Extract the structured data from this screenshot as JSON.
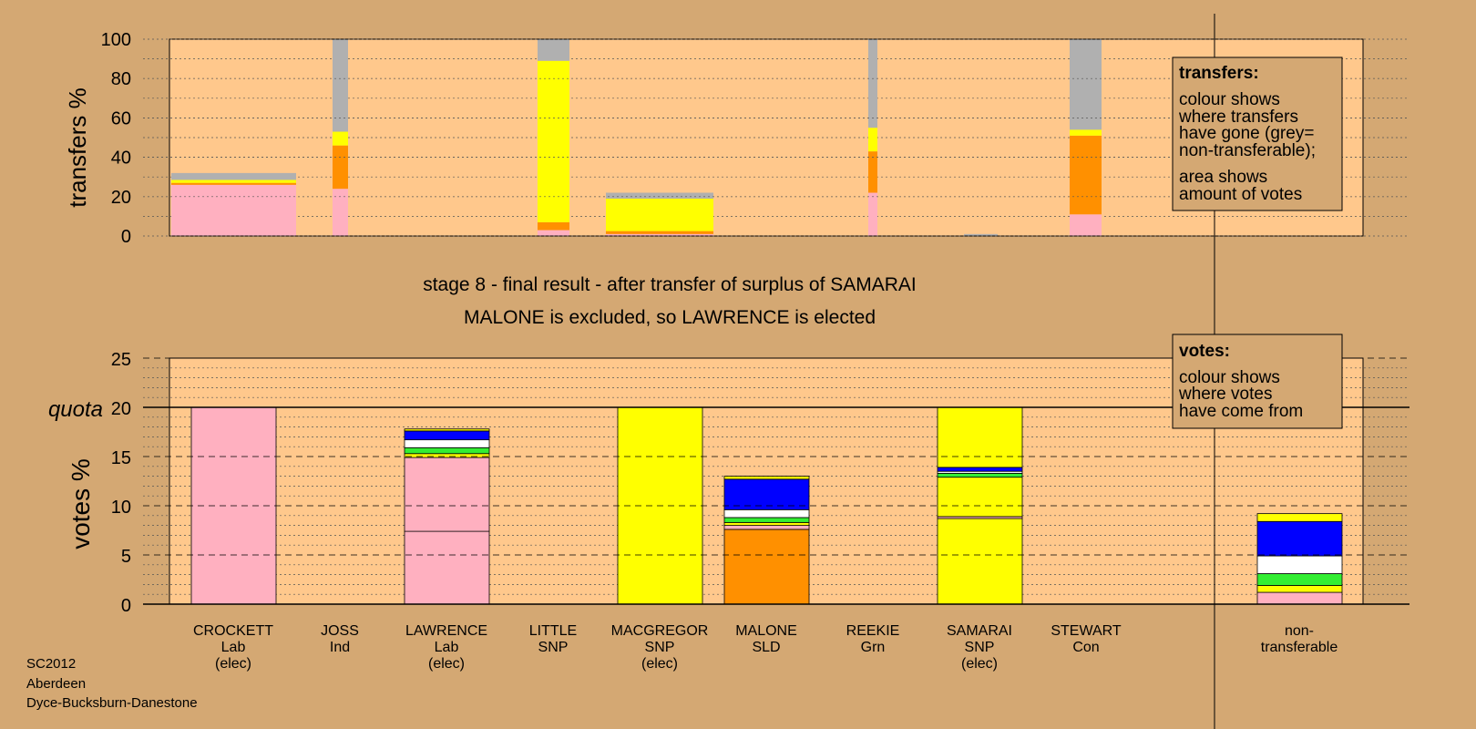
{
  "footer": {
    "line1": "SC2012",
    "line2": "Aberdeen",
    "line3": "Dyce-Bucksburn-Danestone"
  },
  "title": {
    "line1": "stage 8 - final result - after transfer of surplus of SAMARAI",
    "line2": "MALONE is excluded, so LAWRENCE is elected"
  },
  "legend_transfers": {
    "heading": "transfers:",
    "lines1": [
      "colour shows",
      "where transfers",
      "have gone (grey=",
      "non-transferable);"
    ],
    "lines2": [
      "area shows",
      "amount of votes"
    ]
  },
  "legend_votes": {
    "heading": "votes:",
    "lines1": [
      "colour shows",
      "where votes",
      "have come from"
    ]
  },
  "colors": {
    "Lab": "#ffb0c0",
    "SNP": "#ffff00",
    "SLD": "#ff9000",
    "Grn": "#33ee33",
    "Ind": "#ffffff",
    "Con": "#0000ff",
    "NT": "#b0b0b0",
    "background": "#d4a873",
    "plot": "#ffc88c"
  },
  "chart_data": [
    {
      "type": "bar",
      "stacked": true,
      "ylabel": "transfers %",
      "ylim": [
        0,
        100
      ],
      "yticks": [
        0,
        20,
        40,
        60,
        80,
        100
      ],
      "grid": true,
      "bars": [
        {
          "candidate": "CROCKETT",
          "width_share": 3.9,
          "segments": [
            {
              "party": "Lab",
              "value": 26
            },
            {
              "party": "SLD",
              "value": 1
            },
            {
              "party": "SNP",
              "value": 1.5
            },
            {
              "party": "NT",
              "value": 3.5
            }
          ]
        },
        {
          "candidate": "JOSS",
          "width_share": 0.5,
          "segments": [
            {
              "party": "Lab",
              "value": 24
            },
            {
              "party": "SLD",
              "value": 22
            },
            {
              "party": "SNP",
              "value": 7
            },
            {
              "party": "NT",
              "value": 47
            }
          ]
        },
        {
          "candidate": "LITTLE",
          "width_share": 1.0,
          "segments": [
            {
              "party": "Lab",
              "value": 3
            },
            {
              "party": "SLD",
              "value": 4
            },
            {
              "party": "SNP",
              "value": 82
            },
            {
              "party": "NT",
              "value": 11
            }
          ]
        },
        {
          "candidate": "MACGREGOR",
          "width_share": 3.3,
          "segments": [
            {
              "party": "Lab",
              "value": 1
            },
            {
              "party": "SLD",
              "value": 1.5
            },
            {
              "party": "SNP",
              "value": 16.5
            },
            {
              "party": "NT",
              "value": 3
            }
          ]
        },
        {
          "candidate": "REEKIE",
          "width_share": 0.3,
          "segments": [
            {
              "party": "Lab",
              "value": 22
            },
            {
              "party": "SLD",
              "value": 21
            },
            {
              "party": "SNP",
              "value": 12
            },
            {
              "party": "NT",
              "value": 45
            }
          ]
        },
        {
          "candidate": "SAMARAI",
          "width_share": 1.0,
          "segments": [
            {
              "party": "NT",
              "value": 1
            }
          ]
        },
        {
          "candidate": "STEWART",
          "width_share": 1.0,
          "segments": [
            {
              "party": "Lab",
              "value": 11
            },
            {
              "party": "SLD",
              "value": 40
            },
            {
              "party": "SNP",
              "value": 3
            },
            {
              "party": "NT",
              "value": 46
            }
          ]
        }
      ]
    },
    {
      "type": "bar",
      "stacked": true,
      "ylabel": "votes %",
      "ylim": [
        0,
        25
      ],
      "yticks": [
        0,
        5,
        10,
        15,
        20,
        25
      ],
      "quota": 20,
      "quota_label": "quota",
      "grid": true,
      "categories": [
        {
          "name": "CROCKETT",
          "party": "Lab",
          "status": "(elec)"
        },
        {
          "name": "JOSS",
          "party": "Ind",
          "status": ""
        },
        {
          "name": "LAWRENCE",
          "party": "Lab",
          "status": "(elec)"
        },
        {
          "name": "LITTLE",
          "party": "SNP",
          "status": ""
        },
        {
          "name": "MACGREGOR",
          "party": "SNP",
          "status": "(elec)"
        },
        {
          "name": "MALONE",
          "party": "SLD",
          "status": ""
        },
        {
          "name": "REEKIE",
          "party": "Grn",
          "status": ""
        },
        {
          "name": "SAMARAI",
          "party": "SNP",
          "status": "(elec)"
        },
        {
          "name": "STEWART",
          "party": "Con",
          "status": ""
        },
        {
          "name": "non-",
          "party": "transferable",
          "status": ""
        }
      ],
      "stacks": [
        [
          {
            "party": "Lab",
            "value": 20
          }
        ],
        [],
        [
          {
            "party": "Lab",
            "value": 7.4
          },
          {
            "party": "Lab",
            "value": 7.5
          },
          {
            "party": "SNP",
            "value": 0.4
          },
          {
            "party": "Grn",
            "value": 0.6
          },
          {
            "party": "Ind",
            "value": 0.8
          },
          {
            "party": "Con",
            "value": 0.9
          },
          {
            "party": "SNP",
            "value": 0.2
          }
        ],
        [],
        [
          {
            "party": "SNP",
            "value": 20
          }
        ],
        [
          {
            "party": "SLD",
            "value": 7.6
          },
          {
            "party": "Lab",
            "value": 0.4
          },
          {
            "party": "SNP",
            "value": 0.3
          },
          {
            "party": "Grn",
            "value": 0.5
          },
          {
            "party": "Ind",
            "value": 0.8
          },
          {
            "party": "Con",
            "value": 3.1
          },
          {
            "party": "SNP",
            "value": 0.3
          }
        ],
        [],
        [
          {
            "party": "SNP",
            "value": 8.7
          },
          {
            "party": "Lab",
            "value": 0.2
          },
          {
            "party": "SNP",
            "value": 4.0
          },
          {
            "party": "Grn",
            "value": 0.4
          },
          {
            "party": "Ind",
            "value": 0.2
          },
          {
            "party": "Con",
            "value": 0.4
          },
          {
            "party": "SNP",
            "value": 6.1
          }
        ],
        [],
        [
          {
            "party": "Lab",
            "value": 1.2
          },
          {
            "party": "SNP",
            "value": 0.7
          },
          {
            "party": "Grn",
            "value": 1.2
          },
          {
            "party": "Ind",
            "value": 1.8
          },
          {
            "party": "Con",
            "value": 3.5
          },
          {
            "party": "SNP",
            "value": 0.8
          }
        ]
      ]
    }
  ]
}
